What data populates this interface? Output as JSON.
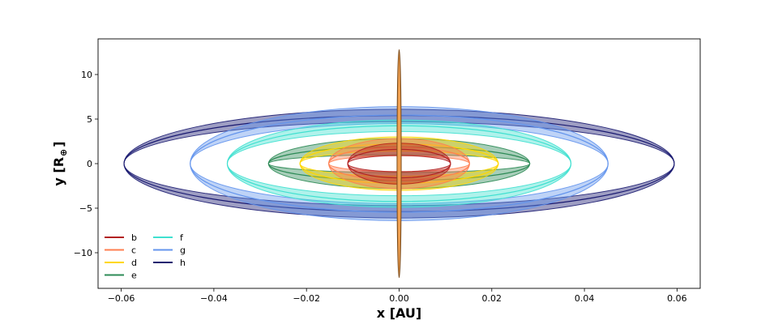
{
  "chart_data": {
    "type": "scatter",
    "title": "",
    "xlabel": "x [AU]",
    "ylabel": "y [R",
    "ylabel_symbol": "⊕",
    "ylabel_close": "]",
    "xlim": [
      -0.065,
      0.065
    ],
    "ylim": [
      -14,
      14
    ],
    "x_ticks": [
      -0.06,
      -0.04,
      -0.02,
      0.0,
      0.02,
      0.04,
      0.06
    ],
    "x_tick_labels": [
      "−0.06",
      "−0.04",
      "−0.02",
      "0.00",
      "0.02",
      "0.04",
      "0.06"
    ],
    "y_ticks": [
      -10,
      -5,
      0,
      5,
      10
    ],
    "y_tick_labels": [
      "−10",
      "−5",
      "0",
      "5",
      "10"
    ],
    "grid": false,
    "legend_position": "lower-left",
    "legend_columns": 2,
    "star": {
      "x_halfwidth": 0.00045,
      "y_halfheight": 12.8,
      "fill": "#f0a050",
      "edge": "#7a4a1a"
    },
    "series": [
      {
        "name": "b",
        "color": "#b22222",
        "semi_major_axis": 0.0111,
        "y_inner": 0.9,
        "y_outer": 2.3
      },
      {
        "name": "c",
        "color": "#ff7f50",
        "semi_major_axis": 0.0152,
        "y_inner": 0.9,
        "y_outer": 2.8
      },
      {
        "name": "d",
        "color": "#ffd700",
        "semi_major_axis": 0.0214,
        "y_inner": 1.4,
        "y_outer": 3.0
      },
      {
        "name": "e",
        "color": "#2e8b57",
        "semi_major_axis": 0.0282,
        "y_inner": 1.0,
        "y_outer": 2.8
      },
      {
        "name": "f",
        "color": "#40e0d0",
        "semi_major_axis": 0.0371,
        "y_inner": 3.6,
        "y_outer": 4.9
      },
      {
        "name": "g",
        "color": "#6495ed",
        "semi_major_axis": 0.0451,
        "y_inner": 4.5,
        "y_outer": 6.4
      },
      {
        "name": "h",
        "color": "#191970",
        "semi_major_axis": 0.0594,
        "y_inner": 4.7,
        "y_outer": 6.1
      }
    ]
  }
}
